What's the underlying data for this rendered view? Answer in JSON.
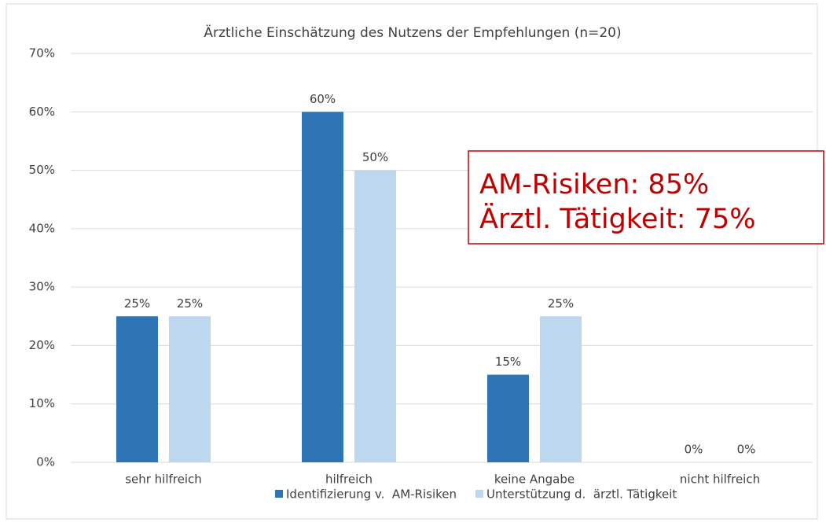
{
  "chart_data": {
    "type": "bar",
    "title": "Ärztliche Einschätzung des Nutzens der Empfehlungen (n=20)",
    "categories": [
      "sehr hilfreich",
      "hilfreich",
      "keine Angabe",
      "nicht hilfreich"
    ],
    "series": [
      {
        "name": "Identifizierung v.  AM-Risiken",
        "color": "#2e75b6",
        "values": [
          25,
          60,
          15,
          0
        ],
        "value_labels": [
          "25%",
          "60%",
          "15%",
          "0%"
        ]
      },
      {
        "name": "Unterstützung d.  ärztl. Tätigkeit",
        "color": "#bdd7ee",
        "values": [
          25,
          50,
          25,
          0
        ],
        "value_labels": [
          "25%",
          "50%",
          "25%",
          "0%"
        ]
      }
    ],
    "ylim": [
      0,
      70
    ],
    "yticks": [
      {
        "value": 0,
        "label": "0%"
      },
      {
        "value": 10,
        "label": "10%"
      },
      {
        "value": 20,
        "label": "20%"
      },
      {
        "value": 30,
        "label": "30%"
      },
      {
        "value": 40,
        "label": "40%"
      },
      {
        "value": 50,
        "label": "50%"
      },
      {
        "value": 60,
        "label": "60%"
      },
      {
        "value": 70,
        "label": "70%"
      }
    ],
    "grid": true,
    "legend": "bottom",
    "annotation": [
      "AM-Risiken: 85%",
      "Ärztl. Tätigkeit: 75%"
    ]
  }
}
